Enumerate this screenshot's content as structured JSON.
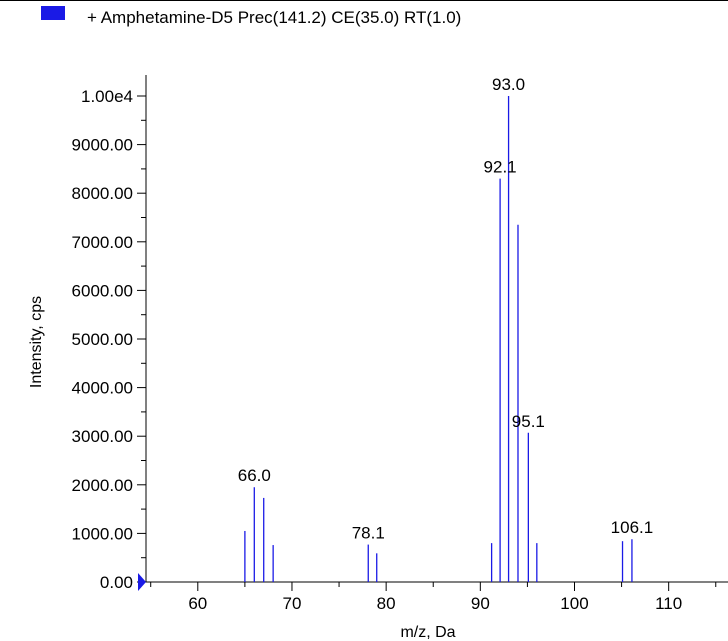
{
  "colors": {
    "series": "#1a1ae6",
    "legend_swatch": "#1a1ae6",
    "axis": "#000000",
    "marker": "#1a1ae6"
  },
  "chart_data": {
    "type": "bar",
    "title": "",
    "legend": {
      "label": "+ Amphetamine-D5 Prec(141.2) CE(35.0) RT(1.0)",
      "placement": "top-left"
    },
    "xlabel": "m/z, Da",
    "ylabel": "Intensity, cps",
    "xlim": [
      54.5,
      116.3
    ],
    "ylim": [
      0,
      10000
    ],
    "x_ticks": [
      60,
      70,
      80,
      90,
      100,
      110
    ],
    "x_tick_labels": [
      "60",
      "70",
      "80",
      "90",
      "100",
      "110"
    ],
    "y_ticks": [
      0,
      1000,
      2000,
      3000,
      4000,
      5000,
      6000,
      7000,
      8000,
      9000,
      10000
    ],
    "y_tick_labels": [
      "0.00",
      "1000.00",
      "2000.00",
      "3000.00",
      "4000.00",
      "5000.00",
      "6000.00",
      "7000.00",
      "8000.00",
      "9000.00",
      "1.00e4"
    ],
    "grid": false,
    "series": [
      {
        "name": "+ Amphetamine-D5 Prec(141.2) CE(35.0) RT(1.0)",
        "peaks": [
          {
            "x": 65.0,
            "y": 1050
          },
          {
            "x": 66.0,
            "y": 1950
          },
          {
            "x": 67.0,
            "y": 1730
          },
          {
            "x": 68.0,
            "y": 760
          },
          {
            "x": 78.1,
            "y": 770
          },
          {
            "x": 79.0,
            "y": 590
          },
          {
            "x": 91.2,
            "y": 800
          },
          {
            "x": 92.1,
            "y": 8300
          },
          {
            "x": 93.0,
            "y": 10000
          },
          {
            "x": 94.0,
            "y": 7350
          },
          {
            "x": 95.1,
            "y": 3070
          },
          {
            "x": 96.0,
            "y": 800
          },
          {
            "x": 105.1,
            "y": 840
          },
          {
            "x": 106.1,
            "y": 880
          }
        ]
      }
    ],
    "annotations": [
      {
        "text": "66.0",
        "x": 66.0,
        "y": 1950
      },
      {
        "text": "78.1",
        "x": 78.1,
        "y": 770
      },
      {
        "text": "92.1",
        "x": 92.1,
        "y": 8300
      },
      {
        "text": "93.0",
        "x": 93.0,
        "y": 10000
      },
      {
        "text": "95.1",
        "x": 95.1,
        "y": 3070
      },
      {
        "text": "106.1",
        "x": 106.1,
        "y": 880
      }
    ]
  }
}
